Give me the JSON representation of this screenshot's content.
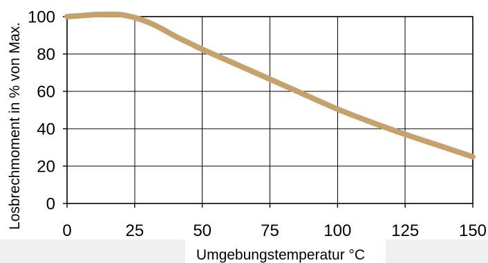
{
  "chart_data": {
    "type": "line",
    "xlabel": "Umgebungstemperatur °C",
    "ylabel": "Losbrechmoment in % von Max.",
    "xlim": [
      0,
      150
    ],
    "ylim": [
      0,
      100
    ],
    "xticks": [
      0,
      25,
      50,
      75,
      100,
      125,
      150
    ],
    "yticks": [
      0,
      20,
      40,
      60,
      80,
      100
    ],
    "grid": true,
    "series": [
      {
        "color": "#C6A16A",
        "x": [
          0,
          5,
          10,
          15,
          20,
          25,
          30,
          35,
          40,
          45,
          50,
          62.5,
          75,
          87.5,
          100,
          112.5,
          125,
          137.5,
          150
        ],
        "y": [
          100,
          100.5,
          101,
          101.2,
          101,
          99.5,
          97,
          93.5,
          89.5,
          86,
          82.5,
          74.5,
          66.5,
          58.5,
          50.5,
          43.5,
          37,
          31,
          25
        ]
      }
    ]
  }
}
